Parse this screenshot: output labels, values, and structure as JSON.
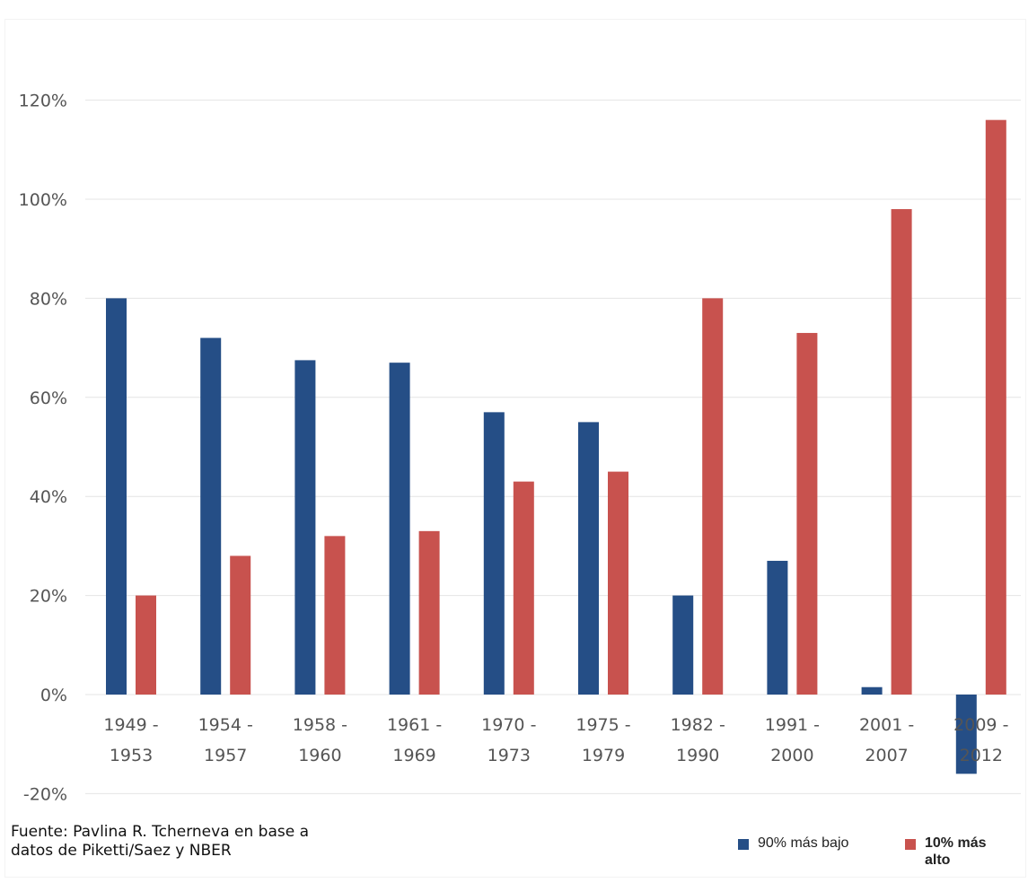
{
  "chart_data": {
    "type": "bar",
    "categories": [
      [
        "1949 -",
        "1953"
      ],
      [
        "1954 -",
        "1957"
      ],
      [
        "1958 -",
        "1960"
      ],
      [
        "1961 -",
        "1969"
      ],
      [
        "1970 -",
        "1973"
      ],
      [
        "1975 -",
        "1979"
      ],
      [
        "1982 -",
        "1990"
      ],
      [
        "1991 -",
        "2000"
      ],
      [
        "2001 -",
        "2007"
      ],
      [
        "2009 -",
        "2012"
      ]
    ],
    "series": [
      {
        "name": "90% más bajo",
        "color": "#254e86",
        "values": [
          80,
          72,
          67.5,
          67,
          57,
          55,
          20,
          27,
          1.5,
          -16
        ]
      },
      {
        "name": "10% más alto",
        "color": "#c8524e",
        "values": [
          20,
          28,
          32,
          33,
          43,
          45,
          80,
          73,
          98,
          116
        ]
      }
    ],
    "yticks": [
      "-20%",
      "0%",
      "20%",
      "40%",
      "60%",
      "80%",
      "100%",
      "120%"
    ],
    "ylim": [
      -20,
      120
    ],
    "grid": true,
    "legend_position": "bottom-right",
    "title": "",
    "xlabel": "",
    "ylabel": ""
  },
  "source_note": {
    "line1": "Fuente: Pavlina R. Tcherneva en base a",
    "line2": "datos de Piketti/Saez y NBER"
  },
  "legend": {
    "items": [
      {
        "label": "90% más bajo",
        "color": "#254e86"
      },
      {
        "label": "10% más alto",
        "color": "#c8524e"
      }
    ]
  }
}
